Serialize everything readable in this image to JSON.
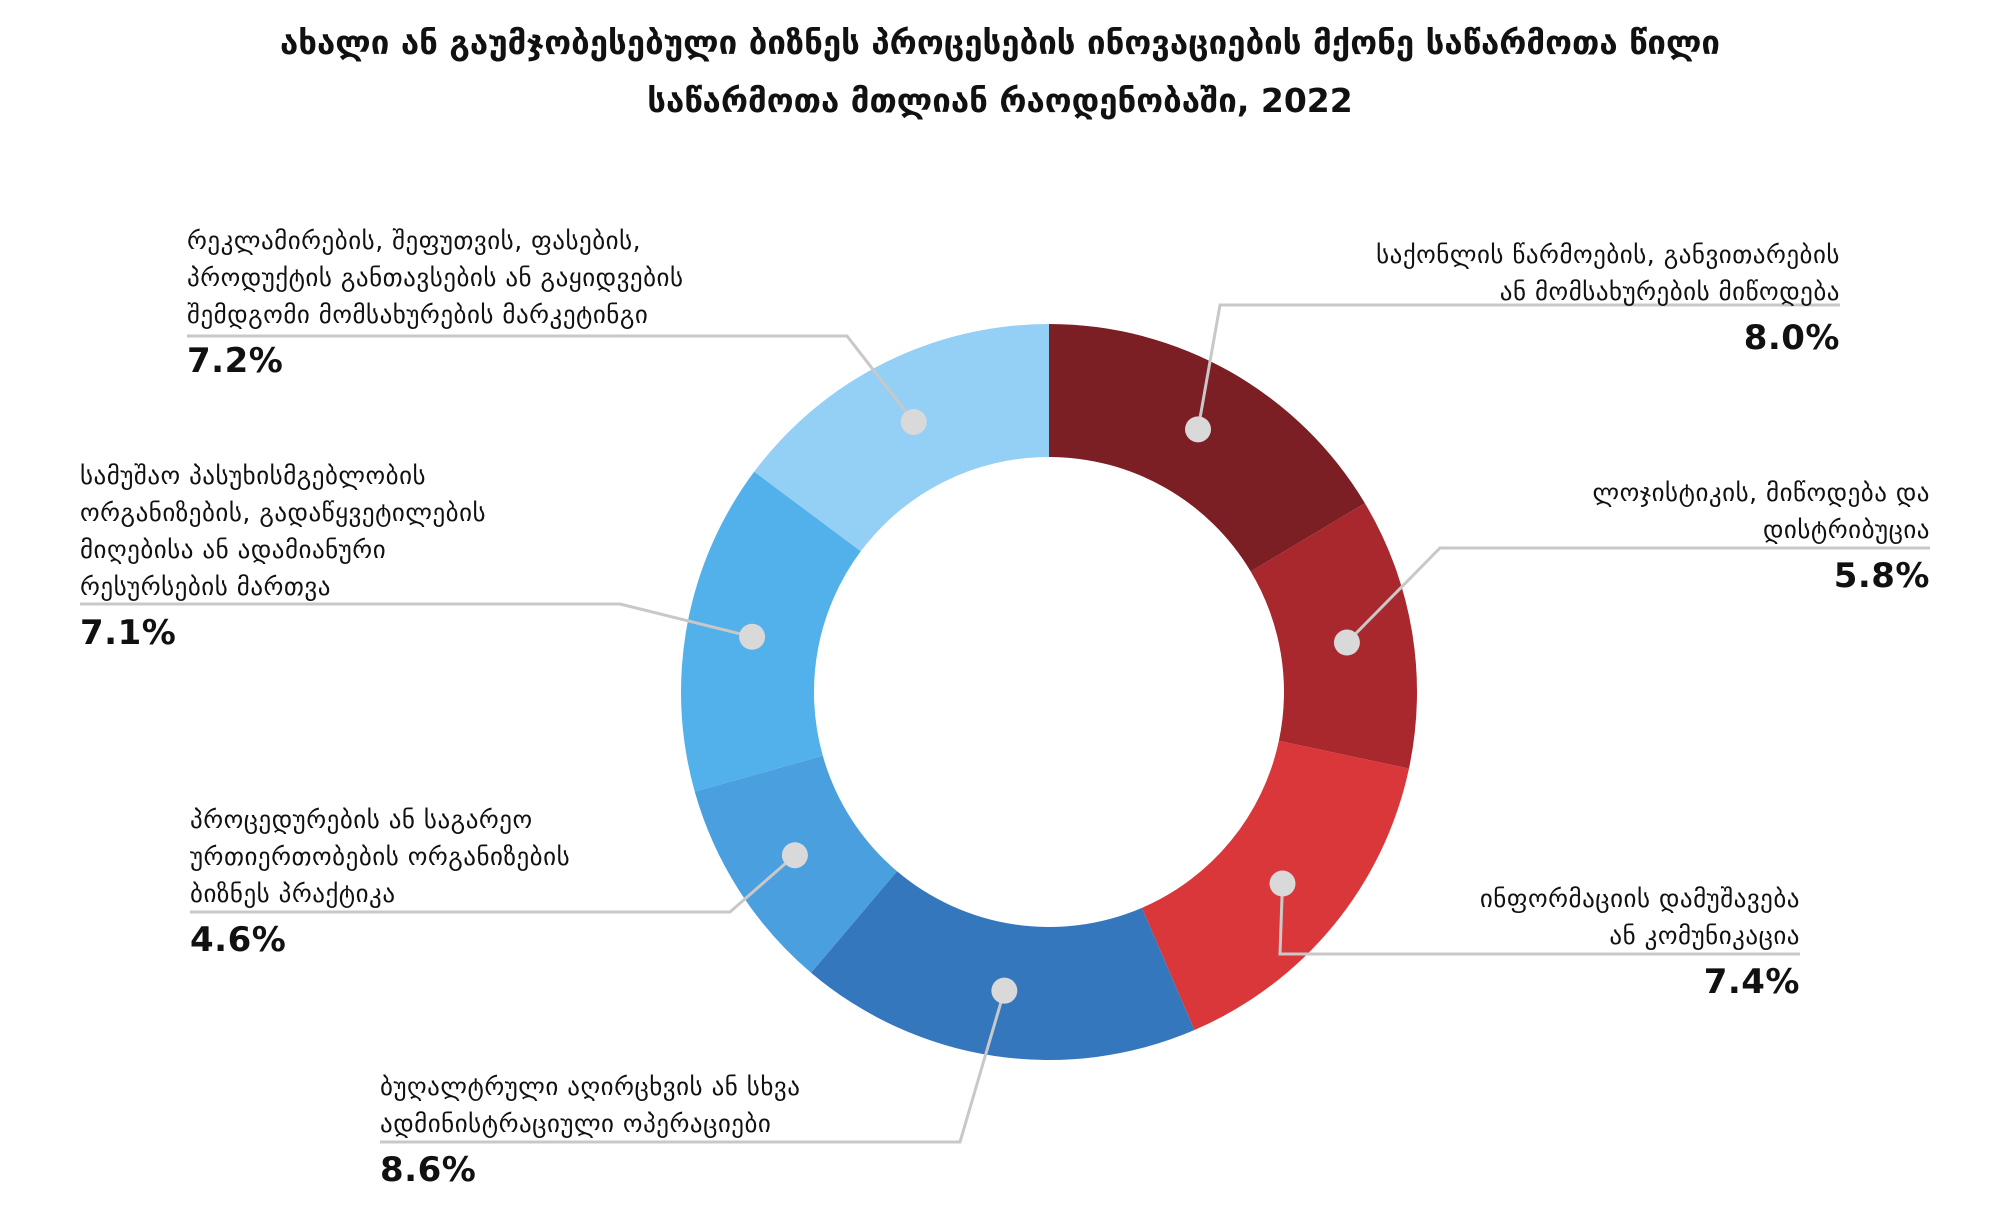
{
  "title": {
    "line1": "ახალი ან გაუმჯობესებული ბიზნეს პროცესების ინოვაციების მქონე საწარმოთა წილი",
    "line2": "საწარმოთა მთლიან რაოდენობაში, 2022"
  },
  "chart_data": {
    "type": "pie",
    "donut": true,
    "title": "ახალი ან გაუმჯობესებული ბიზნეს პროცესების ინოვაციების მქონე საწარმოთა წილი საწარმოთა მთლიან რაოდენობაში, 2022",
    "unit": "%",
    "slices": [
      {
        "label": "საქონლის წარმოების, განვითარების ან მომსახურების მიწოდება",
        "value": 8.0,
        "display": "8.0%",
        "color": "#7b1f24"
      },
      {
        "label": "ლოჯისტიკის, მიწოდება და დისტრიბუცია",
        "value": 5.8,
        "display": "5.8%",
        "color": "#a8282d"
      },
      {
        "label": "ინფორმაციის დამუშავება ან კომუნიკაცია",
        "value": 7.4,
        "display": "7.4%",
        "color": "#d9373a"
      },
      {
        "label": "ბუღალტრული აღირცხვის ან სხვა ადმინისტრაციული ოპერაციები",
        "value": 8.6,
        "display": "8.6%",
        "color": "#3577bd"
      },
      {
        "label": "პროცედურების ან საგარეო ურთიერთობების ორგანიზების ბიზნეს პრაქტიკა",
        "value": 4.6,
        "display": "4.6%",
        "color": "#4a9fdf"
      },
      {
        "label": "სამუშაო პასუხისმგებლობის ორგანიზების, გადაწყვეტილების მიღებისა ან ადამიანური რესურსების მართვა",
        "value": 7.1,
        "display": "7.1%",
        "color": "#52b1ea"
      },
      {
        "label": "რეკლამირების, შეფუთვის, ფასების, პროდუქტის განთავსების ან გაყიდვების შემდგომი მომსახურების მარკეტინგი",
        "value": 7.2,
        "display": "7.2%",
        "color": "#94cff5"
      }
    ],
    "label_lines": [
      [
        "საქონლის წარმოების, განვითარების",
        "ან მომსახურების მიწოდება"
      ],
      [
        "ლოჯისტიკის, მიწოდება და",
        "დისტრიბუცია"
      ],
      [
        "ინფორმაციის დამუშავება",
        "ან კომუნიკაცია"
      ],
      [
        "ბუღალტრული აღირცხვის ან სხვა",
        "ადმინისტრაციული ოპერაციები"
      ],
      [
        "პროცედურების ან საგარეო",
        "ურთიერთობების ორგანიზების",
        "ბიზნეს პრაქტიკა"
      ],
      [
        "სამუშაო პასუხისმგებლობის",
        "ორგანიზების, გადაწყვეტილების",
        "მიღებისა ან ადამიანური",
        "რესურსების მართვა"
      ],
      [
        "რეკლამირების, შეფუთვის, ფასების,",
        "პროდუქტის განთავსების ან გაყიდვების",
        "შემდგომი მომსახურების მარკეტინგი"
      ]
    ],
    "legend": "none"
  }
}
